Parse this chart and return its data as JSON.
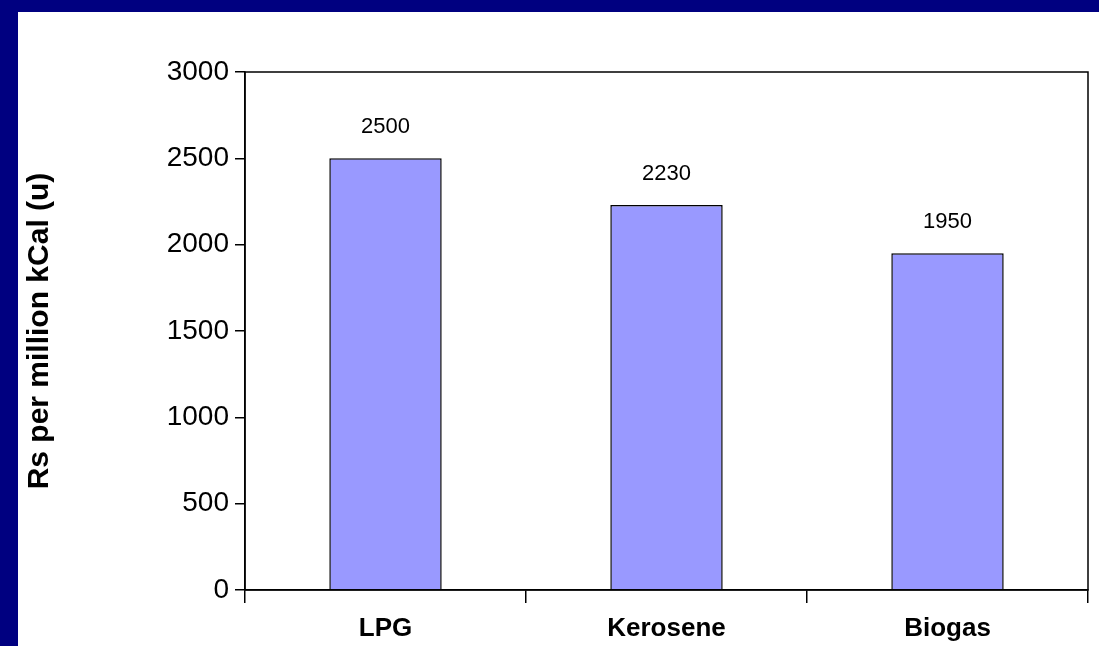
{
  "chart_data": {
    "type": "bar",
    "ylabel": "Rs per million kCal (u)",
    "categories": [
      "LPG",
      "Kerosene",
      "Biogas"
    ],
    "values": [
      2500,
      2230,
      1950
    ],
    "color": "#9999ff",
    "ylim": [
      0,
      3000
    ],
    "yticks": [
      0,
      500,
      1000,
      1500,
      2000,
      2500,
      3000
    ],
    "grid": false,
    "legend": false,
    "data_labels": true
  }
}
